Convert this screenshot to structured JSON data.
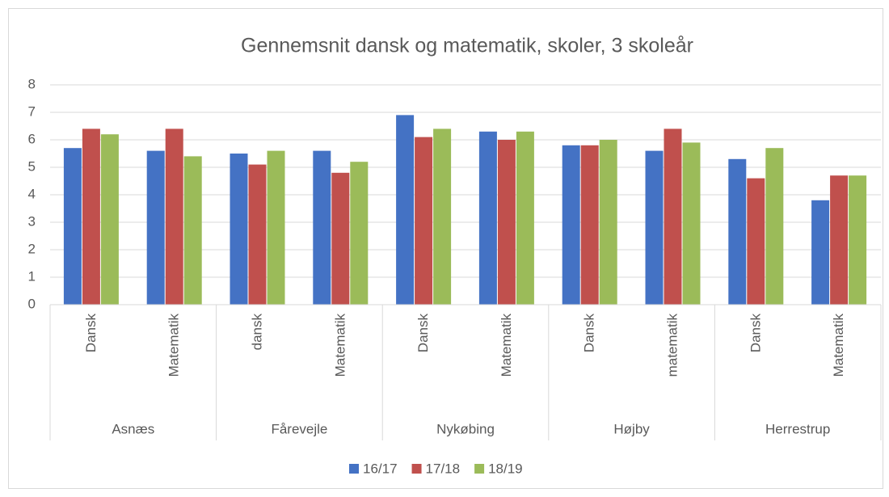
{
  "chart_data": {
    "type": "bar",
    "title": "Gennemsnit dansk og matematik, skoler, 3 skoleår",
    "categories": [
      "Dansk",
      "Matematik",
      "dansk",
      "Matematik",
      "Dansk",
      "Matematik",
      "Dansk",
      "matematik",
      "Dansk",
      "Matematik"
    ],
    "group_labels": [
      "Asnæs",
      "Fårevejle",
      "Nykøbing",
      "Højby",
      "Herrestrup"
    ],
    "series": [
      {
        "name": "16/17",
        "color": "#4472c4",
        "values": [
          5.7,
          5.6,
          5.5,
          5.6,
          6.9,
          6.3,
          5.8,
          5.6,
          5.3,
          3.8
        ]
      },
      {
        "name": "17/18",
        "color": "#c0504d",
        "values": [
          6.4,
          6.4,
          5.1,
          4.8,
          6.1,
          6.0,
          5.8,
          6.4,
          4.6,
          4.7
        ]
      },
      {
        "name": "18/19",
        "color": "#9bbb59",
        "values": [
          6.2,
          5.4,
          5.6,
          5.2,
          6.4,
          6.3,
          6.0,
          5.9,
          5.7,
          4.7
        ]
      }
    ],
    "ylim": [
      0,
      8
    ],
    "yticks": [
      0,
      1,
      2,
      3,
      4,
      5,
      6,
      7,
      8
    ],
    "grid": true,
    "legend": "bottom"
  }
}
